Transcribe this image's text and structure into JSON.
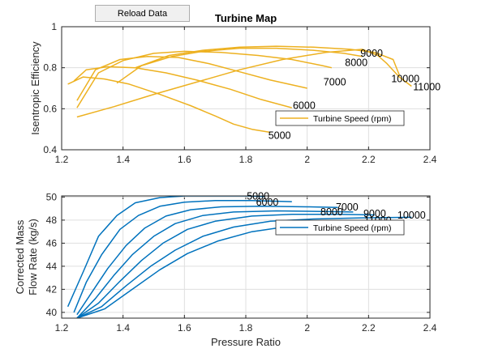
{
  "toolbar": {
    "reload_label": "Reload Data"
  },
  "chart_data": [
    {
      "type": "line",
      "title": "Turbine Map",
      "xlabel": "",
      "ylabel": "Isentropic Efficiency",
      "xlim": [
        1.2,
        2.4
      ],
      "ylim": [
        0.4,
        1.0
      ],
      "xticks": [
        "1.2",
        "1.4",
        "1.6",
        "1.8",
        "2",
        "2.2",
        "2.4"
      ],
      "yticks": [
        "0.4",
        "0.6",
        "0.8",
        "1"
      ],
      "grid": true,
      "color": "#EDB120",
      "legend": {
        "text": "Turbine Speed (rpm)",
        "placement": "lower-right"
      },
      "series": [
        {
          "name": "5000",
          "x": [
            1.22,
            1.27,
            1.34,
            1.42,
            1.52,
            1.62,
            1.7,
            1.76,
            1.82,
            1.88
          ],
          "y": [
            0.72,
            0.755,
            0.745,
            0.72,
            0.67,
            0.615,
            0.565,
            0.525,
            0.5,
            0.485
          ]
        },
        {
          "name": "6000",
          "x": [
            1.24,
            1.28,
            1.35,
            1.44,
            1.54,
            1.64,
            1.75,
            1.85,
            1.95
          ],
          "y": [
            0.735,
            0.79,
            0.805,
            0.8,
            0.775,
            0.74,
            0.695,
            0.645,
            0.605
          ]
        },
        {
          "name": "7000",
          "x": [
            1.25,
            1.31,
            1.39,
            1.48,
            1.58,
            1.68,
            1.78,
            1.88,
            2.0
          ],
          "y": [
            0.64,
            0.79,
            0.84,
            0.855,
            0.85,
            0.82,
            0.78,
            0.74,
            0.7
          ]
        },
        {
          "name": "8000",
          "x": [
            1.25,
            1.32,
            1.4,
            1.5,
            1.6,
            1.72,
            1.84,
            1.95,
            2.05,
            2.08
          ],
          "y": [
            0.605,
            0.775,
            0.835,
            0.87,
            0.88,
            0.875,
            0.86,
            0.84,
            0.81,
            0.8
          ]
        },
        {
          "name": "9000",
          "x": [
            1.38,
            1.46,
            1.56,
            1.66,
            1.78,
            1.9,
            2.02,
            2.12,
            2.18
          ],
          "y": [
            0.725,
            0.81,
            0.855,
            0.88,
            0.895,
            0.895,
            0.885,
            0.87,
            0.855
          ]
        },
        {
          "name": "10000",
          "x": [
            1.44,
            1.55,
            1.66,
            1.78,
            1.9,
            2.02,
            2.14,
            2.22,
            2.28,
            2.3
          ],
          "y": [
            0.8,
            0.86,
            0.885,
            0.9,
            0.905,
            0.9,
            0.89,
            0.875,
            0.84,
            0.765
          ]
        },
        {
          "name": "11000",
          "x": [
            1.25,
            1.37,
            1.5,
            1.64,
            1.78,
            1.92,
            2.06,
            2.18,
            2.23,
            2.26,
            2.3,
            2.34
          ],
          "y": [
            0.56,
            0.61,
            0.67,
            0.73,
            0.79,
            0.84,
            0.875,
            0.89,
            0.86,
            0.82,
            0.755,
            0.71
          ]
        }
      ],
      "curve_labels": [
        {
          "text": "5000",
          "x": 1.91,
          "y": 0.47
        },
        {
          "text": "6000",
          "x": 1.99,
          "y": 0.615
        },
        {
          "text": "7000",
          "x": 2.09,
          "y": 0.73
        },
        {
          "text": "8000",
          "x": 2.16,
          "y": 0.825
        },
        {
          "text": "9000",
          "x": 2.21,
          "y": 0.87
        },
        {
          "text": "10000",
          "x": 2.32,
          "y": 0.745
        },
        {
          "text": "11000",
          "x": 2.39,
          "y": 0.705
        }
      ]
    },
    {
      "type": "line",
      "title": "",
      "xlabel": "Pressure Ratio",
      "ylabel": [
        "Corrected Mass",
        "Flow Rate (kg/s)"
      ],
      "xlim": [
        1.2,
        2.4
      ],
      "ylim": [
        39.5,
        50.1
      ],
      "xticks": [
        "1.2",
        "1.4",
        "1.6",
        "1.8",
        "2",
        "2.2",
        "2.4"
      ],
      "yticks": [
        "40",
        "42",
        "44",
        "46",
        "48",
        "50"
      ],
      "grid": true,
      "color": "#0072BD",
      "legend": {
        "text": "Turbine Speed (rpm)",
        "placement": "right"
      },
      "series": [
        {
          "name": "5000",
          "x": [
            1.22,
            1.27,
            1.32,
            1.38,
            1.44,
            1.52,
            1.6,
            1.7,
            1.8,
            1.86
          ],
          "y": [
            40.5,
            43.5,
            46.6,
            48.4,
            49.5,
            49.95,
            50.1,
            50.1,
            50.1,
            50.05
          ]
        },
        {
          "name": "6000",
          "x": [
            1.24,
            1.28,
            1.33,
            1.39,
            1.45,
            1.52,
            1.6,
            1.7,
            1.82,
            1.95
          ],
          "y": [
            40.0,
            42.6,
            45.0,
            47.2,
            48.4,
            49.2,
            49.55,
            49.7,
            49.7,
            49.6
          ]
        },
        {
          "name": "7000",
          "x": [
            1.25,
            1.3,
            1.35,
            1.41,
            1.47,
            1.54,
            1.62,
            1.72,
            1.85,
            2.0,
            2.1
          ],
          "y": [
            39.8,
            41.8,
            43.8,
            45.8,
            47.3,
            48.35,
            48.9,
            49.15,
            49.2,
            49.15,
            49.1
          ]
        },
        {
          "name": "8000",
          "x": [
            1.25,
            1.31,
            1.37,
            1.43,
            1.5,
            1.57,
            1.66,
            1.76,
            1.9,
            2.05,
            2.15
          ],
          "y": [
            39.5,
            41.2,
            43.2,
            45.0,
            46.6,
            47.7,
            48.4,
            48.7,
            48.8,
            48.75,
            48.7
          ]
        },
        {
          "name": "9000",
          "x": [
            1.25,
            1.32,
            1.39,
            1.46,
            1.53,
            1.61,
            1.7,
            1.82,
            1.95,
            2.1,
            2.22
          ],
          "y": [
            39.5,
            40.8,
            42.7,
            44.5,
            46.0,
            47.2,
            47.9,
            48.35,
            48.5,
            48.5,
            48.45
          ]
        },
        {
          "name": "10000",
          "x": [
            1.25,
            1.33,
            1.41,
            1.49,
            1.57,
            1.66,
            1.76,
            1.88,
            2.02,
            2.18,
            2.34
          ],
          "y": [
            39.5,
            40.5,
            42.3,
            44.0,
            45.4,
            46.6,
            47.4,
            47.9,
            48.1,
            48.2,
            48.25
          ]
        },
        {
          "name": "11000",
          "x": [
            1.25,
            1.34,
            1.43,
            1.52,
            1.61,
            1.71,
            1.82,
            1.95,
            2.1,
            2.25
          ],
          "y": [
            39.5,
            40.3,
            42.0,
            43.7,
            45.1,
            46.2,
            47.0,
            47.5,
            47.75,
            47.9
          ]
        }
      ],
      "curve_labels": [
        {
          "text": "5000",
          "x": 1.84,
          "y": 50.05
        },
        {
          "text": "6000",
          "x": 1.87,
          "y": 49.55
        },
        {
          "text": "7000",
          "x": 2.13,
          "y": 49.1
        },
        {
          "text": "8000",
          "x": 2.08,
          "y": 48.7
        },
        {
          "text": "9000",
          "x": 2.22,
          "y": 48.55
        },
        {
          "text": "10000",
          "x": 2.34,
          "y": 48.4
        },
        {
          "text": "11000",
          "x": 2.23,
          "y": 47.95
        }
      ]
    }
  ]
}
